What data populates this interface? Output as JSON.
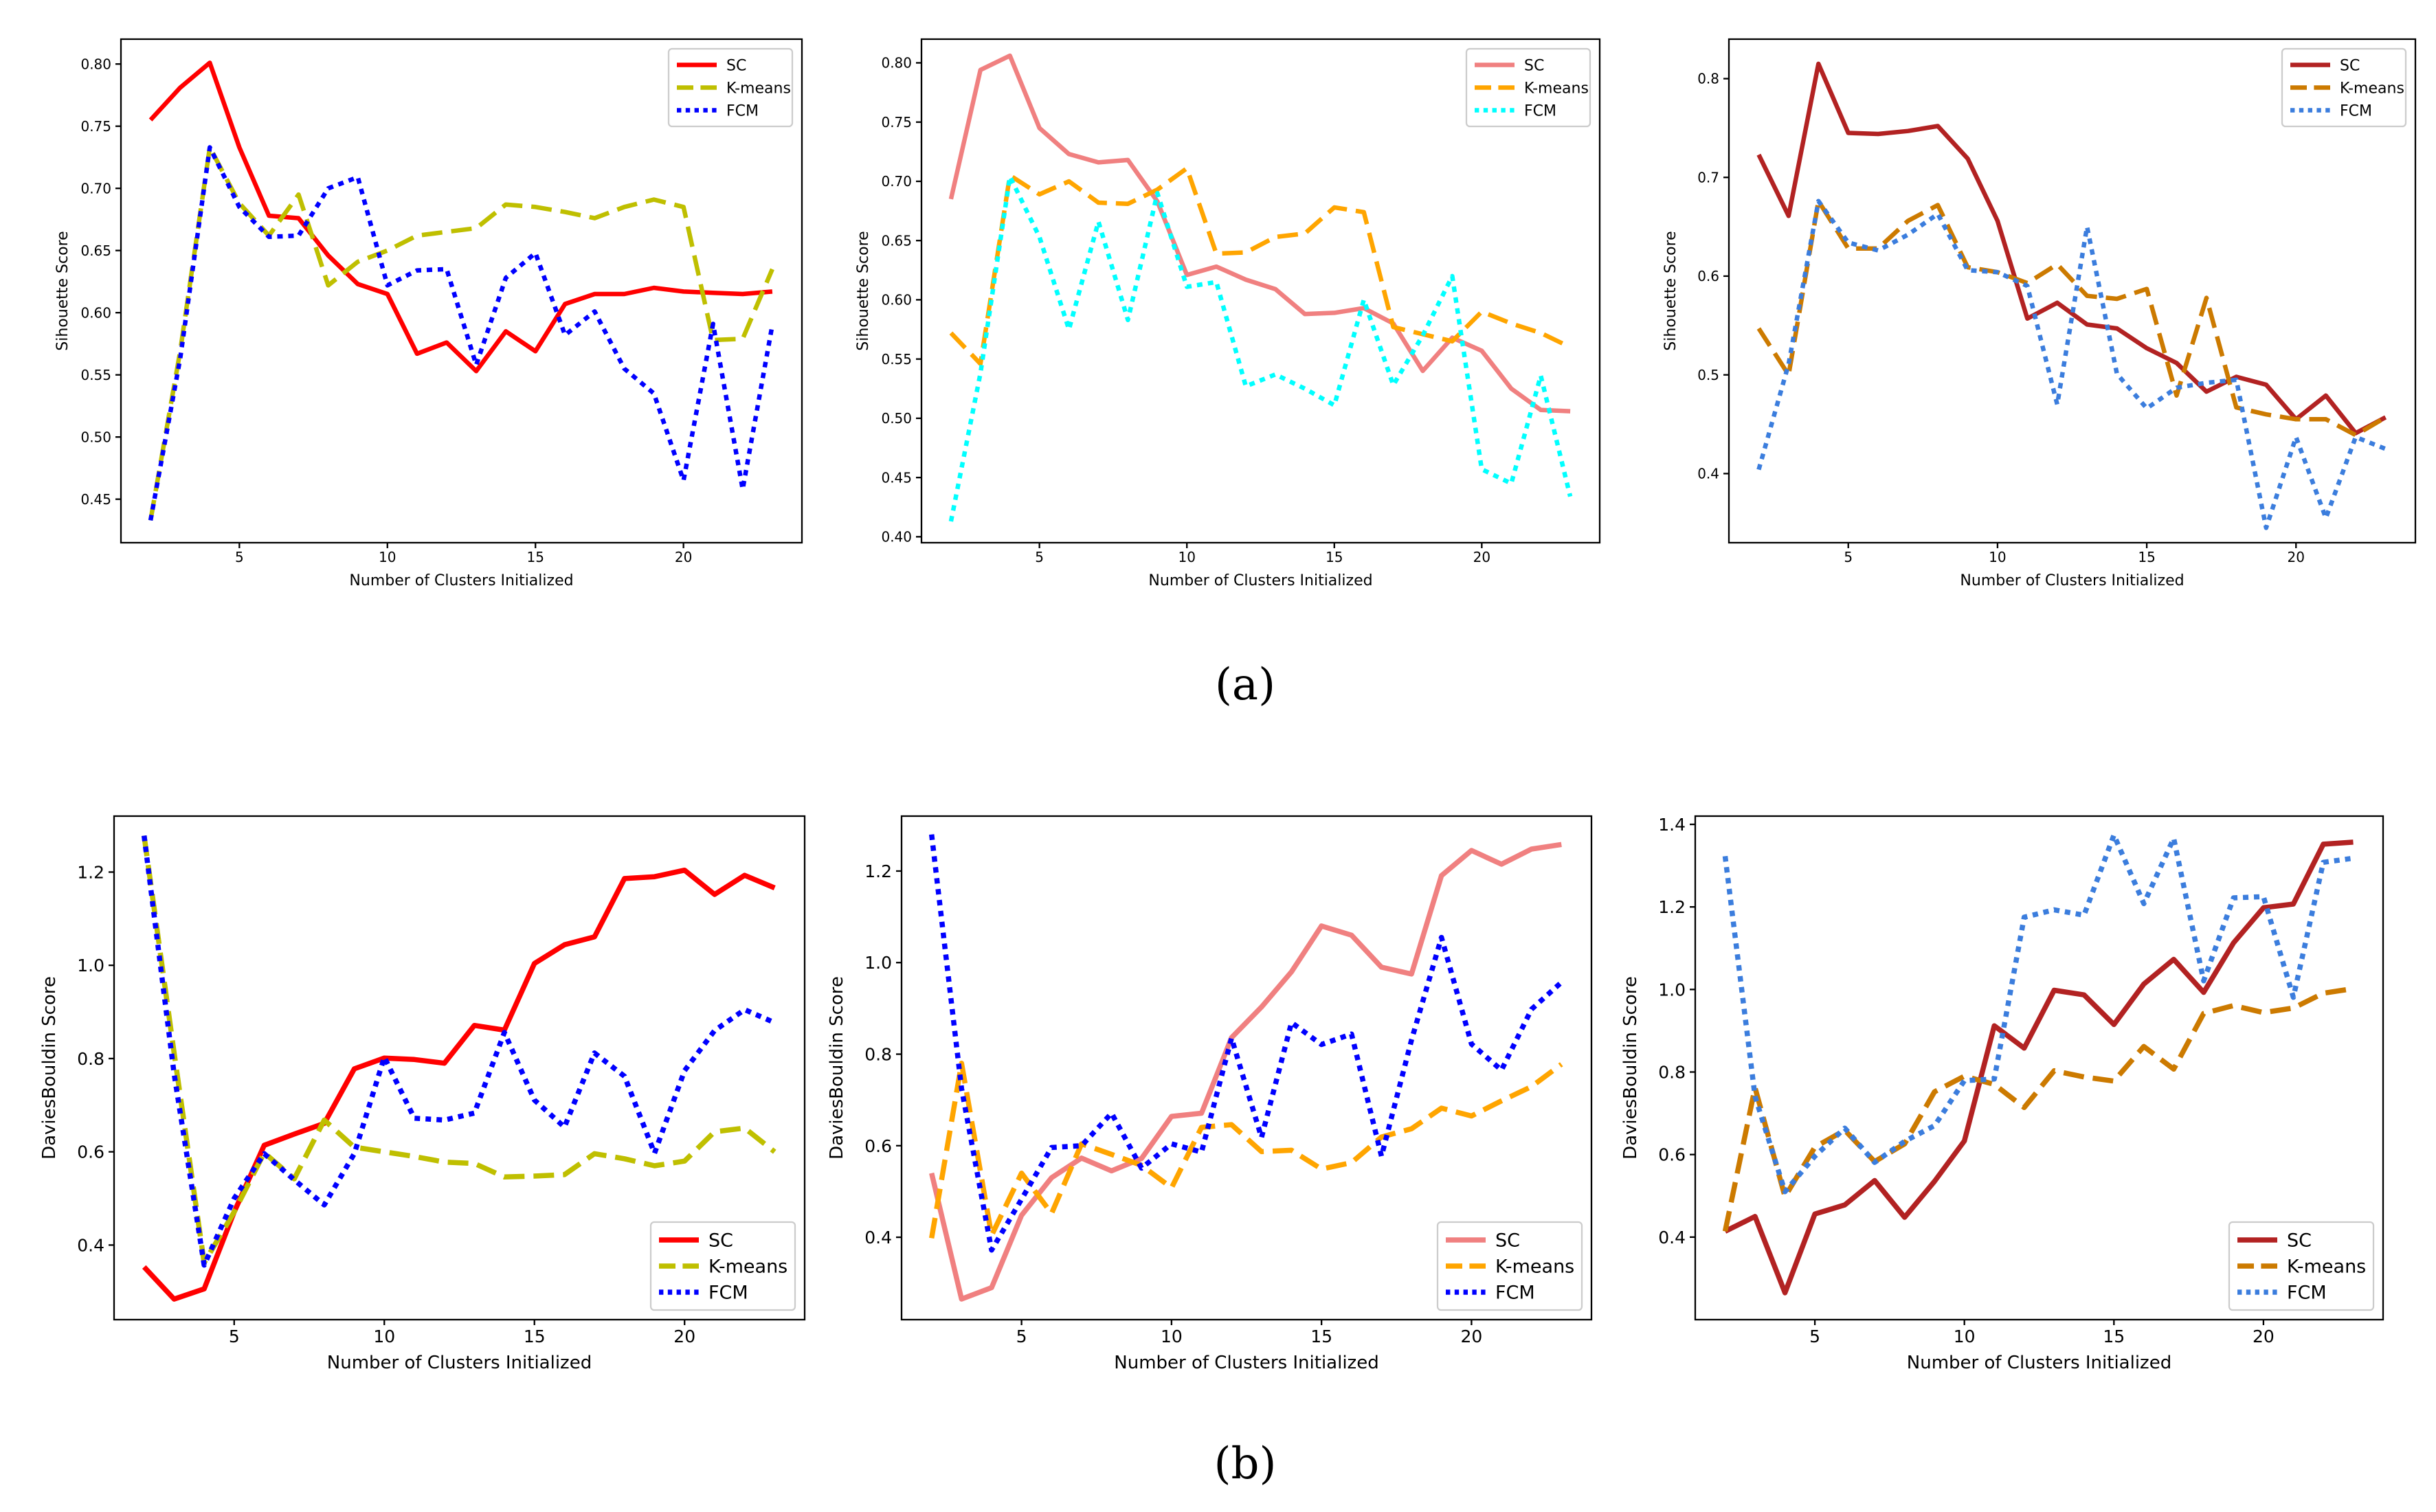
{
  "captions": {
    "a": "(a)",
    "b": "(b)"
  },
  "chart_data": [
    {
      "type": "line",
      "row": "a",
      "col": 0,
      "xlabel": "Number of Clusters Initialized",
      "ylabel": "Sihouette Score",
      "xlim": [
        1.0,
        24.0
      ],
      "ylim": [
        0.415,
        0.82
      ],
      "xticks": [
        5,
        10,
        15,
        20
      ],
      "yticks": [
        0.45,
        0.5,
        0.55,
        0.6,
        0.65,
        0.7,
        0.75,
        0.8
      ],
      "ytick_labels": [
        "0.45",
        "0.50",
        "0.55",
        "0.60",
        "0.65",
        "0.70",
        "0.75",
        "0.80"
      ],
      "legend": "top-right",
      "x": [
        2,
        3,
        4,
        5,
        6,
        7,
        8,
        9,
        10,
        11,
        12,
        13,
        14,
        15,
        16,
        17,
        18,
        19,
        20,
        21,
        22,
        23
      ],
      "series": [
        {
          "name": "SC",
          "color": "#ff0000",
          "style": "solid",
          "values": [
            0.755,
            0.781,
            0.801,
            0.733,
            0.678,
            0.676,
            0.646,
            0.623,
            0.615,
            0.567,
            0.576,
            0.553,
            0.585,
            0.569,
            0.607,
            0.615,
            0.615,
            0.62,
            0.617,
            0.616,
            0.615,
            0.617
          ]
        },
        {
          "name": "K-means",
          "color": "#bfbf00",
          "style": "dashed",
          "values": [
            0.433,
            0.569,
            0.733,
            0.688,
            0.662,
            0.695,
            0.622,
            0.641,
            0.65,
            0.662,
            0.665,
            0.668,
            0.687,
            0.685,
            0.681,
            0.676,
            0.685,
            0.691,
            0.685,
            0.578,
            0.579,
            0.635
          ]
        },
        {
          "name": "FCM",
          "color": "#0000ff",
          "style": "dotted",
          "values": [
            0.433,
            0.563,
            0.733,
            0.685,
            0.661,
            0.662,
            0.7,
            0.709,
            0.622,
            0.634,
            0.635,
            0.558,
            0.628,
            0.648,
            0.582,
            0.601,
            0.555,
            0.535,
            0.465,
            0.591,
            0.458,
            0.59
          ]
        }
      ]
    },
    {
      "type": "line",
      "row": "a",
      "col": 1,
      "xlabel": "Number of Clusters Initialized",
      "ylabel": "Sihouette Score",
      "xlim": [
        1.0,
        24.0
      ],
      "ylim": [
        0.395,
        0.82
      ],
      "xticks": [
        5,
        10,
        15,
        20
      ],
      "yticks": [
        0.4,
        0.45,
        0.5,
        0.55,
        0.6,
        0.65,
        0.7,
        0.75,
        0.8
      ],
      "ytick_labels": [
        "0.40",
        "0.45",
        "0.50",
        "0.55",
        "0.60",
        "0.65",
        "0.70",
        "0.75",
        "0.80"
      ],
      "legend": "top-right",
      "x": [
        2,
        3,
        4,
        5,
        6,
        7,
        8,
        9,
        10,
        11,
        12,
        13,
        14,
        15,
        16,
        17,
        18,
        19,
        20,
        21,
        22,
        23
      ],
      "series": [
        {
          "name": "SC",
          "color": "#f08080",
          "style": "solid",
          "values": [
            0.685,
            0.794,
            0.806,
            0.745,
            0.723,
            0.716,
            0.718,
            0.683,
            0.621,
            0.628,
            0.617,
            0.609,
            0.588,
            0.589,
            0.593,
            0.58,
            0.54,
            0.568,
            0.557,
            0.525,
            0.507,
            0.506
          ]
        },
        {
          "name": "K-means",
          "color": "#ffa500",
          "style": "dashed",
          "values": [
            0.572,
            0.546,
            0.705,
            0.689,
            0.7,
            0.682,
            0.681,
            0.693,
            0.711,
            0.639,
            0.64,
            0.653,
            0.656,
            0.678,
            0.674,
            0.577,
            0.571,
            0.565,
            0.59,
            0.58,
            0.572,
            0.56
          ]
        },
        {
          "name": "FCM",
          "color": "#00ffff",
          "style": "dotted",
          "values": [
            0.413,
            0.538,
            0.704,
            0.653,
            0.575,
            0.666,
            0.583,
            0.69,
            0.611,
            0.615,
            0.527,
            0.537,
            0.525,
            0.511,
            0.6,
            0.528,
            0.57,
            0.62,
            0.457,
            0.445,
            0.536,
            0.434
          ]
        }
      ]
    },
    {
      "type": "line",
      "row": "a",
      "col": 2,
      "xlabel": "Number of Clusters Initialized",
      "ylabel": "Sihouette Score",
      "xlim": [
        1.0,
        24.0
      ],
      "ylim": [
        0.33,
        0.84
      ],
      "xticks": [
        5,
        10,
        15,
        20
      ],
      "yticks": [
        0.4,
        0.5,
        0.6,
        0.7,
        0.8
      ],
      "ytick_labels": [
        "0.4",
        "0.5",
        "0.6",
        "0.7",
        "0.8"
      ],
      "legend": "top-right",
      "x": [
        2,
        3,
        4,
        5,
        6,
        7,
        8,
        9,
        10,
        11,
        12,
        13,
        14,
        15,
        16,
        17,
        18,
        19,
        20,
        21,
        22,
        23
      ],
      "series": [
        {
          "name": "SC",
          "color": "#b22222",
          "style": "solid",
          "values": [
            0.723,
            0.661,
            0.815,
            0.745,
            0.744,
            0.747,
            0.752,
            0.719,
            0.656,
            0.557,
            0.573,
            0.551,
            0.547,
            0.527,
            0.512,
            0.483,
            0.498,
            0.49,
            0.455,
            0.479,
            0.441,
            0.457
          ]
        },
        {
          "name": "K-means",
          "color": "#cc7a00",
          "style": "dashed",
          "values": [
            0.547,
            0.5,
            0.676,
            0.628,
            0.628,
            0.656,
            0.672,
            0.609,
            0.604,
            0.593,
            0.612,
            0.58,
            0.577,
            0.587,
            0.479,
            0.578,
            0.467,
            0.46,
            0.455,
            0.455,
            0.439,
            0.457
          ]
        },
        {
          "name": "FCM",
          "color": "#3b7ddd",
          "style": "dotted",
          "values": [
            0.404,
            0.511,
            0.676,
            0.634,
            0.626,
            0.642,
            0.663,
            0.606,
            0.604,
            0.59,
            0.47,
            0.65,
            0.501,
            0.466,
            0.487,
            0.492,
            0.495,
            0.345,
            0.437,
            0.355,
            0.437,
            0.425
          ]
        }
      ]
    },
    {
      "type": "line",
      "row": "b",
      "col": 0,
      "xlabel": "Number of Clusters Initialized",
      "ylabel": "DaviesBouldin Score",
      "xlim": [
        1.0,
        24.0
      ],
      "ylim": [
        0.24,
        1.32
      ],
      "xticks": [
        5,
        10,
        15,
        20
      ],
      "yticks": [
        0.4,
        0.6,
        0.8,
        1.0,
        1.2
      ],
      "ytick_labels": [
        "0.4",
        "0.6",
        "0.8",
        "1.0",
        "1.2"
      ],
      "legend": "bottom-right",
      "x": [
        2,
        3,
        4,
        5,
        6,
        7,
        8,
        9,
        10,
        11,
        12,
        13,
        14,
        15,
        16,
        17,
        18,
        19,
        20,
        21,
        22,
        23
      ],
      "series": [
        {
          "name": "SC",
          "color": "#ff0000",
          "style": "solid",
          "values": [
            0.353,
            0.284,
            0.306,
            0.471,
            0.614,
            0.638,
            0.661,
            0.778,
            0.801,
            0.798,
            0.79,
            0.871,
            0.861,
            1.004,
            1.044,
            1.061,
            1.186,
            1.19,
            1.204,
            1.152,
            1.193,
            1.166
          ]
        },
        {
          "name": "K-means",
          "color": "#bfbf00",
          "style": "dashed",
          "values": [
            1.278,
            0.812,
            0.362,
            0.471,
            0.598,
            0.542,
            0.668,
            0.61,
            0.6,
            0.59,
            0.578,
            0.575,
            0.546,
            0.548,
            0.551,
            0.596,
            0.585,
            0.57,
            0.58,
            0.643,
            0.651,
            0.6
          ]
        },
        {
          "name": "FCM",
          "color": "#0000ff",
          "style": "dotted",
          "values": [
            1.278,
            0.767,
            0.357,
            0.5,
            0.596,
            0.54,
            0.486,
            0.596,
            0.803,
            0.672,
            0.668,
            0.683,
            0.856,
            0.711,
            0.653,
            0.812,
            0.762,
            0.597,
            0.774,
            0.86,
            0.905,
            0.877
          ]
        }
      ]
    },
    {
      "type": "line",
      "row": "b",
      "col": 1,
      "xlabel": "Number of Clusters Initialized",
      "ylabel": "DaviesBouldin Score",
      "xlim": [
        1.0,
        24.0
      ],
      "ylim": [
        0.22,
        1.32
      ],
      "xticks": [
        5,
        10,
        15,
        20
      ],
      "yticks": [
        0.4,
        0.6,
        0.8,
        1.0,
        1.2
      ],
      "ytick_labels": [
        "0.4",
        "0.6",
        "0.8",
        "1.0",
        "1.2"
      ],
      "legend": "bottom-right",
      "x": [
        2,
        3,
        4,
        5,
        6,
        7,
        8,
        9,
        10,
        11,
        12,
        13,
        14,
        15,
        16,
        17,
        18,
        19,
        20,
        21,
        22,
        23
      ],
      "series": [
        {
          "name": "SC",
          "color": "#f08080",
          "style": "solid",
          "values": [
            0.54,
            0.265,
            0.29,
            0.448,
            0.53,
            0.573,
            0.545,
            0.572,
            0.664,
            0.671,
            0.836,
            0.903,
            0.98,
            1.08,
            1.06,
            0.99,
            0.975,
            1.19,
            1.245,
            1.215,
            1.248,
            1.258
          ]
        },
        {
          "name": "K-means",
          "color": "#ffa500",
          "style": "dashed",
          "values": [
            0.398,
            0.78,
            0.404,
            0.54,
            0.452,
            0.604,
            0.581,
            0.557,
            0.508,
            0.64,
            0.646,
            0.587,
            0.59,
            0.549,
            0.563,
            0.619,
            0.637,
            0.682,
            0.665,
            0.698,
            0.729,
            0.778
          ]
        },
        {
          "name": "FCM",
          "color": "#0000ff",
          "style": "dotted",
          "values": [
            1.28,
            0.725,
            0.372,
            0.483,
            0.596,
            0.6,
            0.671,
            0.551,
            0.604,
            0.586,
            0.835,
            0.618,
            0.869,
            0.821,
            0.844,
            0.577,
            0.831,
            1.055,
            0.822,
            0.765,
            0.898,
            0.957
          ]
        }
      ]
    },
    {
      "type": "line",
      "row": "b",
      "col": 2,
      "xlabel": "Number of Clusters Initialized",
      "ylabel": "DaviesBouldin Score",
      "xlim": [
        1.0,
        24.0
      ],
      "ylim": [
        0.2,
        1.42
      ],
      "xticks": [
        5,
        10,
        15,
        20
      ],
      "yticks": [
        0.4,
        0.6,
        0.8,
        1.0,
        1.2,
        1.4
      ],
      "ytick_labels": [
        "0.4",
        "0.6",
        "0.8",
        "1.0",
        "1.2",
        "1.4"
      ],
      "legend": "bottom-right",
      "x": [
        2,
        3,
        4,
        5,
        6,
        7,
        8,
        9,
        10,
        11,
        12,
        13,
        14,
        15,
        16,
        17,
        18,
        19,
        20,
        21,
        22,
        23
      ],
      "series": [
        {
          "name": "SC",
          "color": "#b22222",
          "style": "solid",
          "values": [
            0.414,
            0.45,
            0.265,
            0.456,
            0.478,
            0.537,
            0.448,
            0.535,
            0.633,
            0.912,
            0.858,
            0.998,
            0.987,
            0.915,
            1.013,
            1.073,
            0.993,
            1.113,
            1.198,
            1.207,
            1.352,
            1.357
          ]
        },
        {
          "name": "K-means",
          "color": "#cc7a00",
          "style": "dashed",
          "values": [
            0.414,
            0.762,
            0.498,
            0.618,
            0.659,
            0.583,
            0.626,
            0.752,
            0.79,
            0.77,
            0.714,
            0.803,
            0.788,
            0.778,
            0.862,
            0.807,
            0.942,
            0.961,
            0.944,
            0.955,
            0.991,
            1.002
          ]
        },
        {
          "name": "FCM",
          "color": "#3b7ddd",
          "style": "dotted",
          "values": [
            1.323,
            0.741,
            0.51,
            0.596,
            0.664,
            0.581,
            0.632,
            0.67,
            0.779,
            0.783,
            1.175,
            1.193,
            1.18,
            1.374,
            1.208,
            1.366,
            1.021,
            1.222,
            1.225,
            0.981,
            1.308,
            1.318
          ]
        }
      ]
    }
  ]
}
